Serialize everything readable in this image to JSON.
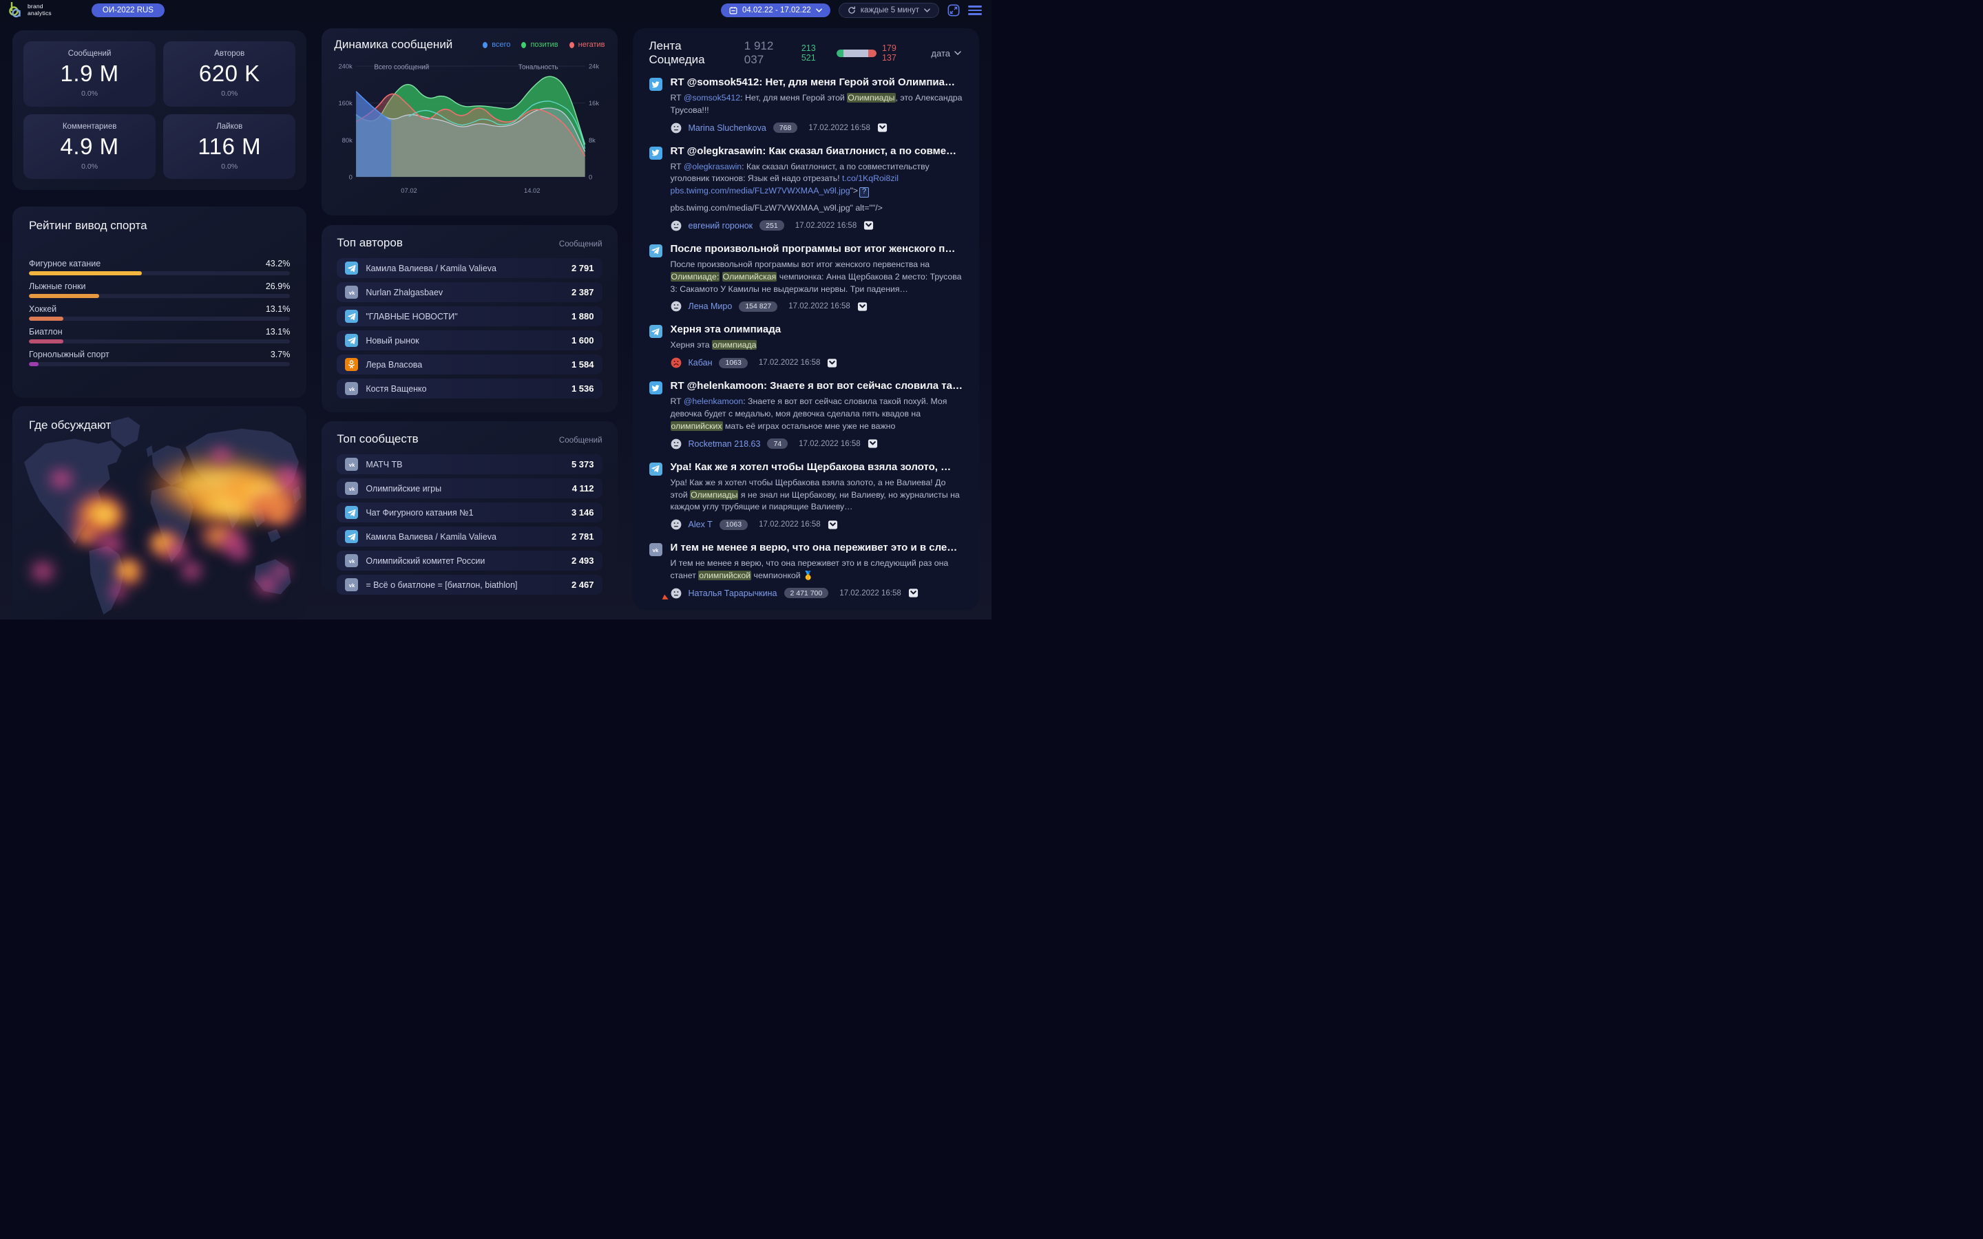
{
  "topbar": {
    "brand_line1": "brand",
    "brand_line2": "analytics",
    "project_label": "ОИ-2022 RUS",
    "date_range": "04.02.22 - 17.02.22",
    "refresh_label": "каждые 5 минут"
  },
  "stats": {
    "cards": [
      {
        "label": "Сообщений",
        "value": "1.9 M",
        "delta": "0.0%"
      },
      {
        "label": "Авторов",
        "value": "620 K",
        "delta": "0.0%"
      },
      {
        "label": "Комментариев",
        "value": "4.9 M",
        "delta": "0.0%"
      },
      {
        "label": "Лайков",
        "value": "116 M",
        "delta": "0.0%"
      }
    ]
  },
  "map": {
    "title": "Где обсуждают"
  },
  "top_authors": {
    "title": "Топ авторов",
    "column": "Сообщений",
    "items": [
      {
        "network": "telegram",
        "name": "Камила Валиева / Kamila Valieva",
        "value": "2 791"
      },
      {
        "network": "vk",
        "name": "Nurlan Zhalgasbaev",
        "value": "2 387"
      },
      {
        "network": "telegram",
        "name": "\"ГЛАВНЫЕ НОВОСТИ\"",
        "value": "1 880"
      },
      {
        "network": "telegram",
        "name": "Новый рынок",
        "value": "1 600"
      },
      {
        "network": "ok",
        "name": "Лера Власова",
        "value": "1 584"
      },
      {
        "network": "vk",
        "name": "Костя Ващенко",
        "value": "1 536"
      }
    ]
  },
  "top_communities": {
    "title": "Топ сообществ",
    "column": "Сообщений",
    "items": [
      {
        "network": "vk",
        "name": "МАТЧ ТВ",
        "value": "5 373"
      },
      {
        "network": "vk",
        "name": "Олимпийские игры",
        "value": "4 112"
      },
      {
        "network": "telegram",
        "name": "Чат Фигурного катания №1",
        "value": "3 146"
      },
      {
        "network": "telegram",
        "name": "Камила Валиева / Kamila Valieva",
        "value": "2 781"
      },
      {
        "network": "vk",
        "name": "Олимпийский комитет России",
        "value": "2 493"
      },
      {
        "network": "vk",
        "name": "= Всё о биатлоне = [биатлон, biathlon]",
        "value": "2 467"
      }
    ]
  },
  "feed": {
    "title": "Лента Соцмедиа",
    "total": "1 912 037",
    "positive": "213 521",
    "negative": "179 137",
    "sort_label": "дата",
    "posts": [
      {
        "network": "twitter",
        "mood": "neutral",
        "title": "RT @somsok5412: Нет, для меня Герой этой Олимпиа…",
        "body": [
          {
            "k": "p",
            "t": "RT "
          },
          {
            "k": "l",
            "t": "@somsok5412"
          },
          {
            "k": "p",
            "t": ": Нет, для меня Герой этой "
          },
          {
            "k": "h",
            "t": "Олимпиады"
          },
          {
            "k": "p",
            "t": ", это Александра Трусова!!!"
          }
        ],
        "author": "Marina Sluchenkova",
        "badge": "768",
        "time": "17.02.2022 16:58"
      },
      {
        "network": "twitter",
        "mood": "neutral",
        "title": "RT @olegkrasawin: Как сказал биатлонист, а по совме…",
        "body": [
          {
            "k": "p",
            "t": "RT "
          },
          {
            "k": "l",
            "t": "@olegkrasawin"
          },
          {
            "k": "p",
            "t": ": Как сказал биатлонист, а по совместительству уголовник тихонов: Язык ей надо отрезать! "
          },
          {
            "k": "l",
            "t": "t.co/1KqRoi8zil"
          },
          {
            "k": "p",
            "t": " "
          },
          {
            "k": "l",
            "t": "pbs.twimg.com/media/FLzW7VWXMAA_w9l.jpg"
          },
          {
            "k": "p",
            "t": "\">"
          },
          {
            "k": "img"
          },
          {
            "k": "br"
          },
          {
            "k": "p",
            "t": "pbs.twimg.com/media/FLzW7VWXMAA_w9l.jpg\" alt=\"\"/>"
          }
        ],
        "author": "евгений горонок",
        "badge": "251",
        "time": "17.02.2022 16:58"
      },
      {
        "network": "telegram",
        "mood": "neutral",
        "title": "После произвольной программы вот итог женского п…",
        "body": [
          {
            "k": "p",
            "t": "После произвольной программы вот итог женского первенства на "
          },
          {
            "k": "h",
            "t": "Олимпиаде:"
          },
          {
            "k": "p",
            "t": " "
          },
          {
            "k": "h",
            "t": "Олимпийская"
          },
          {
            "k": "p",
            "t": " чемпионка: Анна Щербакова 2 место: Трусова 3: Сакамото У Камилы не выдержали нервы. Три падения…"
          }
        ],
        "author": "Лена Миро",
        "badge": "154 827",
        "time": "17.02.2022 16:58"
      },
      {
        "network": "telegram",
        "mood": "sad",
        "title": "Херня эта олимпиада",
        "body": [
          {
            "k": "p",
            "t": "Херня эта "
          },
          {
            "k": "h",
            "t": "олимпиада"
          }
        ],
        "author": "Кабан",
        "badge": "1063",
        "time": "17.02.2022 16:58"
      },
      {
        "network": "twitter",
        "mood": "neutral",
        "title": "RT @helenkamoon: Знаете я вот вот сейчас словила та…",
        "body": [
          {
            "k": "p",
            "t": "RT "
          },
          {
            "k": "l",
            "t": "@helenkamoon"
          },
          {
            "k": "p",
            "t": ": Знаете я вот вот сейчас словила такой похуй. Моя девочка будет с медалью, моя девочка сделала пять квадов на "
          },
          {
            "k": "h",
            "t": "олимпийских"
          },
          {
            "k": "p",
            "t": " мать её играх остальное мне уже не важно"
          }
        ],
        "author": "Rocketman 218.63",
        "badge": "74",
        "time": "17.02.2022 16:58"
      },
      {
        "network": "telegram",
        "mood": "neutral",
        "title": "Ура! Как же я хотел чтобы Щербакова взяла золото, …",
        "body": [
          {
            "k": "p",
            "t": "Ура! Как же я хотел чтобы Щербакова взяла золото, а не Валиева! До этой "
          },
          {
            "k": "h",
            "t": "Олимпиады"
          },
          {
            "k": "p",
            "t": " я не знал ни Щербакову, ни Валиеву, но журналисты на каждом углу трубящие и пиарящие Валиеву…"
          }
        ],
        "author": "Alex T",
        "badge": "1063",
        "time": "17.02.2022 16:58"
      },
      {
        "network": "vk",
        "mood": "neutral",
        "title": "И тем не менее я верю, что она переживет это и в сле…",
        "body": [
          {
            "k": "p",
            "t": "И тем не менее я верю, что она переживет это и в следующий раз она станет "
          },
          {
            "k": "h",
            "t": "олимпийской"
          },
          {
            "k": "p",
            "t": " чемпионкой 🥇"
          }
        ],
        "author": "Наталья Тарарычкина",
        "badge": "2 471 700",
        "time": "17.02.2022 16:58"
      }
    ]
  },
  "chart_data": [
    {
      "type": "area",
      "title": "Динамика сообщений",
      "legend": [
        "всего",
        "позитив",
        "негатив"
      ],
      "legend_colors": [
        "#4a90f0",
        "#3ecf6e",
        "#ef6a6a"
      ],
      "legend_position": "top-right",
      "grid": true,
      "axis_left_label": "Всего сообщений",
      "axis_right_label": "Тональность",
      "ylabels_left": [
        "240k",
        "160k",
        "80k",
        "0"
      ],
      "ylabels_right": [
        "24k",
        "16k",
        "8k",
        "0"
      ],
      "ylim_left": [
        0,
        240000
      ],
      "ylim_right": [
        0,
        24000
      ],
      "xticks": [
        "07.02",
        "14.02"
      ],
      "x": [
        "04.02",
        "05.02",
        "06.02",
        "07.02",
        "08.02",
        "09.02",
        "10.02",
        "11.02",
        "12.02",
        "13.02",
        "14.02",
        "15.02",
        "16.02",
        "17.02"
      ],
      "series": [
        {
          "name": "всего",
          "axis": "left",
          "values": [
            185000,
            148000,
            120000,
            138000,
            128000,
            122000,
            105000,
            118000,
            108000,
            112000,
            142000,
            152000,
            138000,
            55000
          ]
        },
        {
          "name": "позитив",
          "axis": "right",
          "values": [
            13500,
            10500,
            17500,
            21000,
            16500,
            18000,
            15000,
            15500,
            15000,
            14500,
            19500,
            22500,
            19500,
            7000
          ]
        },
        {
          "name": "негатив",
          "axis": "right",
          "values": [
            12000,
            14000,
            19000,
            15500,
            11500,
            15500,
            12500,
            15800,
            12000,
            11800,
            15000,
            14000,
            11000,
            4500
          ]
        }
      ]
    },
    {
      "type": "bar",
      "orientation": "horizontal",
      "title": "Рейтинг вивод спорта",
      "categories": [
        "Фигурное катание",
        "Лыжные гонки",
        "Хоккей",
        "Биатлон",
        "Горнолыжный спорт"
      ],
      "values": [
        43.2,
        26.9,
        13.1,
        13.1,
        3.7
      ],
      "value_labels": [
        "43.2%",
        "26.9%",
        "13.1%",
        "13.1%",
        "3.7%"
      ],
      "colors": [
        "#f2b63f",
        "#e8993f",
        "#dd7a52",
        "#bc5071",
        "#9d3dae"
      ],
      "xlim": [
        0,
        100
      ]
    },
    {
      "type": "heatmap",
      "title": "Где обсуждают",
      "note": "world map heat intensity, no numeric labels shown"
    }
  ]
}
